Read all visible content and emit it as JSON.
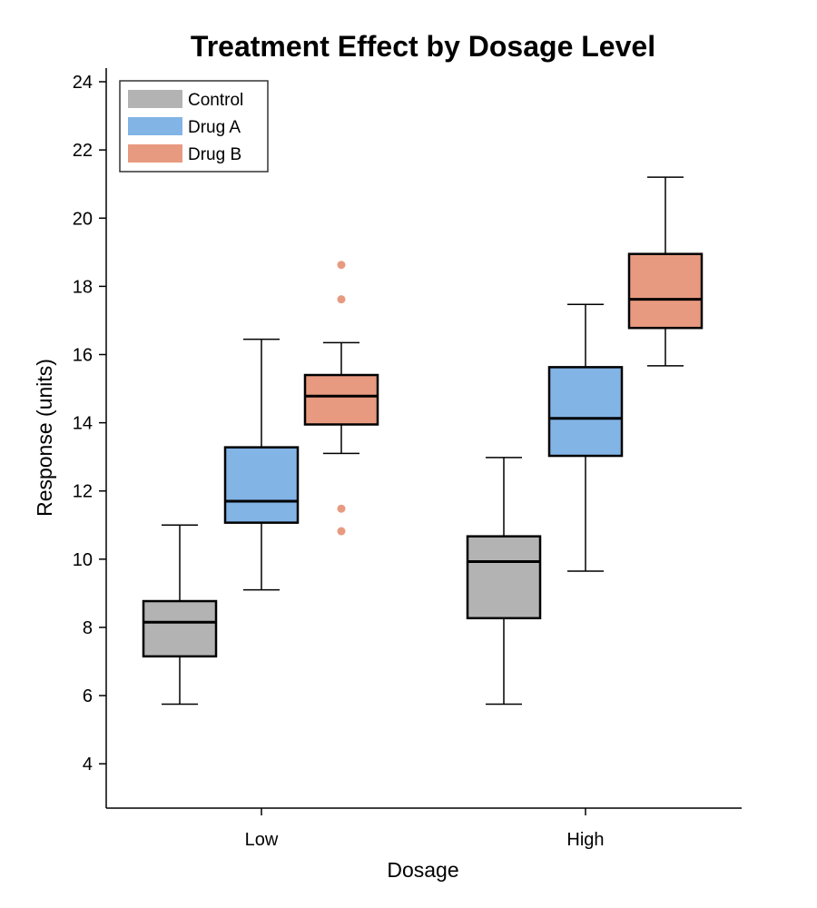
{
  "chart_data": {
    "type": "boxplot",
    "title": "Treatment Effect by Dosage Level",
    "xlabel": "Dosage",
    "ylabel": "Response (units)",
    "categories": [
      "Low",
      "High"
    ],
    "ylim": [
      2.7,
      24.4
    ],
    "yticks": [
      4,
      6,
      8,
      10,
      12,
      14,
      16,
      18,
      20,
      22,
      24
    ],
    "grid": false,
    "legend_position": "top-left",
    "series": [
      {
        "name": "Control",
        "color": "#b3b3b3",
        "boxes": [
          {
            "whisker_low": 5.75,
            "q1": 7.15,
            "median": 8.15,
            "q3": 8.77,
            "whisker_high": 11.0,
            "outliers": []
          },
          {
            "whisker_low": 5.75,
            "q1": 8.27,
            "median": 9.93,
            "q3": 10.67,
            "whisker_high": 12.98,
            "outliers": []
          }
        ]
      },
      {
        "name": "Drug A",
        "color": "#82b4e6",
        "boxes": [
          {
            "whisker_low": 9.1,
            "q1": 11.07,
            "median": 11.7,
            "q3": 13.28,
            "whisker_high": 16.45,
            "outliers": []
          },
          {
            "whisker_low": 9.65,
            "q1": 13.03,
            "median": 14.13,
            "q3": 15.63,
            "whisker_high": 17.47,
            "outliers": []
          }
        ]
      },
      {
        "name": "Drug B",
        "color": "#e89a80",
        "boxes": [
          {
            "whisker_low": 13.1,
            "q1": 13.95,
            "median": 14.78,
            "q3": 15.4,
            "whisker_high": 16.35,
            "outliers": [
              18.63,
              17.62,
              11.48,
              10.82
            ]
          },
          {
            "whisker_low": 15.67,
            "q1": 16.78,
            "median": 17.62,
            "q3": 18.95,
            "whisker_high": 21.2,
            "outliers": []
          }
        ]
      }
    ]
  }
}
